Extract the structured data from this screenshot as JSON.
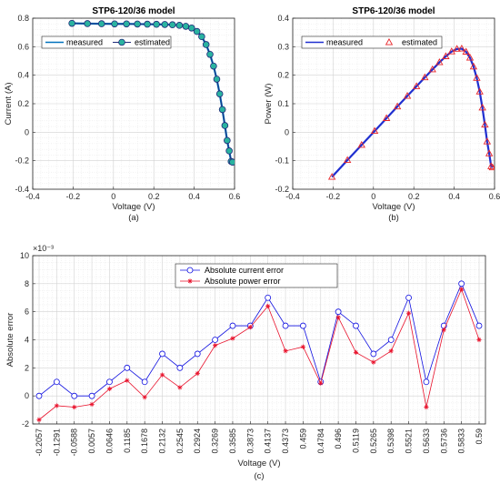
{
  "chart_data": [
    {
      "type": "line",
      "title": "STP6-120/36 model",
      "xlabel": "Voltage (V)",
      "ylabel": "Current (A)",
      "caption": "(a)",
      "xlim": [
        -0.4,
        0.6
      ],
      "ylim": [
        -0.4,
        0.8
      ],
      "xticks": [
        -0.4,
        -0.2,
        0,
        0.2,
        0.4,
        0.6
      ],
      "xtick_labels": [
        "-0.4",
        "-0.2",
        "0",
        "0.2",
        "0.4",
        "0.6"
      ],
      "yticks": [
        -0.4,
        -0.2,
        0,
        0.2,
        0.4,
        0.6,
        0.8
      ],
      "ytick_labels": [
        "-0.4",
        "-0.2",
        "0",
        "0.2",
        "0.4",
        "0.6",
        "0.8"
      ],
      "grid": true,
      "legend_position": "top-left",
      "series": [
        {
          "name": "measured",
          "color": "#0072BD",
          "style": "line",
          "x": [
            -0.2057,
            -0.1291,
            -0.0588,
            0.0057,
            0.0646,
            0.1185,
            0.1678,
            0.2132,
            0.2545,
            0.2924,
            0.3269,
            0.3585,
            0.3873,
            0.4137,
            0.4373,
            0.459,
            0.4784,
            0.496,
            0.5119,
            0.5265,
            0.5398,
            0.5521,
            0.5633,
            0.5736,
            0.5833,
            0.59
          ],
          "y": [
            0.764,
            0.762,
            0.761,
            0.76,
            0.76,
            0.759,
            0.758,
            0.757,
            0.756,
            0.754,
            0.75,
            0.743,
            0.731,
            0.707,
            0.671,
            0.615,
            0.546,
            0.464,
            0.372,
            0.269,
            0.159,
            0.047,
            -0.058,
            -0.131,
            -0.205,
            -0.21
          ]
        },
        {
          "name": "estimated",
          "color": "#1f2a7a",
          "marker_fill": "#2ab3a0",
          "style": "line-marker",
          "x": [
            -0.2057,
            -0.1291,
            -0.0588,
            0.0057,
            0.0646,
            0.1185,
            0.1678,
            0.2132,
            0.2545,
            0.2924,
            0.3269,
            0.3585,
            0.3873,
            0.4137,
            0.4373,
            0.459,
            0.4784,
            0.496,
            0.5119,
            0.5265,
            0.5398,
            0.5521,
            0.5633,
            0.5736,
            0.5833,
            0.59
          ],
          "y": [
            0.764,
            0.762,
            0.761,
            0.76,
            0.76,
            0.759,
            0.758,
            0.757,
            0.756,
            0.754,
            0.75,
            0.743,
            0.731,
            0.707,
            0.671,
            0.615,
            0.546,
            0.464,
            0.372,
            0.269,
            0.159,
            0.047,
            -0.058,
            -0.131,
            -0.205,
            -0.21
          ]
        }
      ]
    },
    {
      "type": "line",
      "title": "STP6-120/36 model",
      "xlabel": "Voltage (V)",
      "ylabel": "Power (W)",
      "caption": "(b)",
      "xlim": [
        -0.4,
        0.6
      ],
      "ylim": [
        -0.2,
        0.4
      ],
      "xticks": [
        -0.4,
        -0.2,
        0,
        0.2,
        0.4,
        0.6
      ],
      "xtick_labels": [
        "-0.4",
        "-0.2",
        "0",
        "0.2",
        "0.4",
        "0.6"
      ],
      "yticks": [
        -0.2,
        -0.1,
        0,
        0.1,
        0.2,
        0.3,
        0.4
      ],
      "ytick_labels": [
        "-0.2",
        "-0.1",
        "0",
        "0.1",
        "0.2",
        "0.3",
        "0.4"
      ],
      "grid": true,
      "legend_position": "top-left",
      "series": [
        {
          "name": "measured",
          "color": "#1f2fd0",
          "style": "line",
          "x": [
            -0.2057,
            -0.1291,
            -0.0588,
            0.0057,
            0.0646,
            0.1185,
            0.1678,
            0.2132,
            0.2545,
            0.2924,
            0.3269,
            0.3585,
            0.3873,
            0.4137,
            0.4373,
            0.459,
            0.4784,
            0.496,
            0.5119,
            0.5265,
            0.5398,
            0.5521,
            0.5633,
            0.5736,
            0.5833,
            0.59
          ],
          "y": [
            -0.157,
            -0.098,
            -0.045,
            0.004,
            0.049,
            0.09,
            0.127,
            0.161,
            0.192,
            0.22,
            0.245,
            0.266,
            0.283,
            0.292,
            0.293,
            0.282,
            0.261,
            0.23,
            0.19,
            0.142,
            0.086,
            0.026,
            -0.033,
            -0.075,
            -0.12,
            -0.124
          ]
        },
        {
          "name": "estimated",
          "color": "#e8262a",
          "style": "marker-triangle",
          "x": [
            -0.2057,
            -0.1291,
            -0.0588,
            0.0057,
            0.0646,
            0.1185,
            0.1678,
            0.2132,
            0.2545,
            0.2924,
            0.3269,
            0.3585,
            0.3873,
            0.4137,
            0.4373,
            0.459,
            0.4784,
            0.496,
            0.5119,
            0.5265,
            0.5398,
            0.5521,
            0.5633,
            0.5736,
            0.5833,
            0.59
          ],
          "y": [
            -0.157,
            -0.098,
            -0.045,
            0.004,
            0.049,
            0.09,
            0.127,
            0.161,
            0.192,
            0.22,
            0.245,
            0.266,
            0.283,
            0.292,
            0.293,
            0.282,
            0.261,
            0.23,
            0.19,
            0.142,
            0.086,
            0.026,
            -0.033,
            -0.075,
            -0.12,
            -0.124
          ]
        }
      ]
    },
    {
      "type": "line",
      "title": "",
      "xlabel": "Voltage (V)",
      "ylabel": "Absolute error",
      "caption": "(c)",
      "exponent_label": "×10⁻³",
      "categories": [
        "-0.2057",
        "-0.1291",
        "-0.0588",
        "0.0057",
        "0.0646",
        "0.1185",
        "0.1678",
        "0.2132",
        "0.2545",
        "0.2924",
        "0.3269",
        "0.3585",
        "0.3873",
        "0.4137",
        "0.4373",
        "0.459",
        "0.4784",
        "0.496",
        "0.5119",
        "0.5265",
        "0.5398",
        "0.5521",
        "0.5633",
        "0.5736",
        "0.5833",
        "0.59"
      ],
      "ylim": [
        -2,
        10
      ],
      "yticks": [
        -2,
        0,
        2,
        4,
        6,
        8,
        10
      ],
      "ytick_labels": [
        "-2",
        "0",
        "2",
        "4",
        "6",
        "8",
        "10"
      ],
      "grid": true,
      "legend_position": "top-center",
      "series": [
        {
          "name": "Absolute current error",
          "color": "#1010e0",
          "marker": "circle",
          "values": [
            0,
            1,
            0,
            0,
            1,
            2,
            1,
            3,
            2,
            3,
            4,
            5,
            5,
            7,
            5,
            5,
            1,
            6,
            5,
            3,
            4,
            7,
            1,
            5,
            8,
            5
          ]
        },
        {
          "name": "Absolute power error",
          "color": "#e8102a",
          "marker": "star",
          "values": [
            -1.7,
            -0.7,
            -0.8,
            -0.6,
            0.5,
            1.1,
            -0.1,
            1.5,
            0.6,
            1.6,
            3.6,
            4.1,
            4.9,
            6.4,
            3.2,
            3.5,
            0.9,
            5.6,
            3.1,
            2.4,
            3.2,
            5.9,
            -0.8,
            4.7,
            7.6,
            4.0
          ]
        }
      ]
    }
  ]
}
